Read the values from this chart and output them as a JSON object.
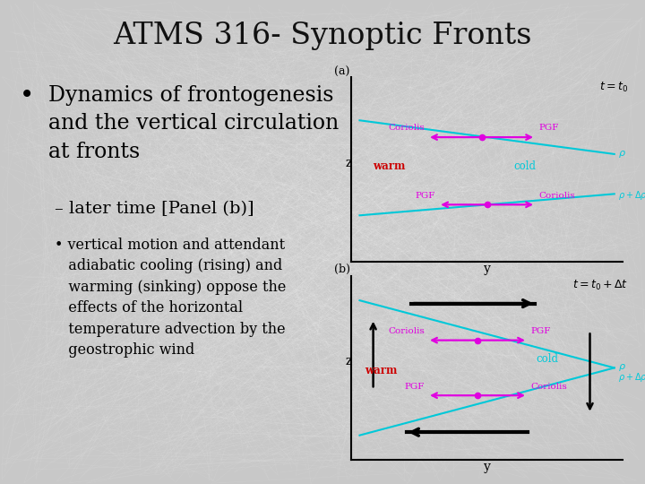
{
  "title": "ATMS 316- Synoptic Fronts",
  "bg_color": "#c8c8c8",
  "title_fontsize": 24,
  "title_color": "#111111",
  "panel_a_label": "(a)",
  "panel_b_label": "(b)",
  "cyan": "#00c8d8",
  "magenta": "#e000e0",
  "black": "#000000",
  "warm_color": "#cc0000",
  "cold_color": "#00c8d8"
}
